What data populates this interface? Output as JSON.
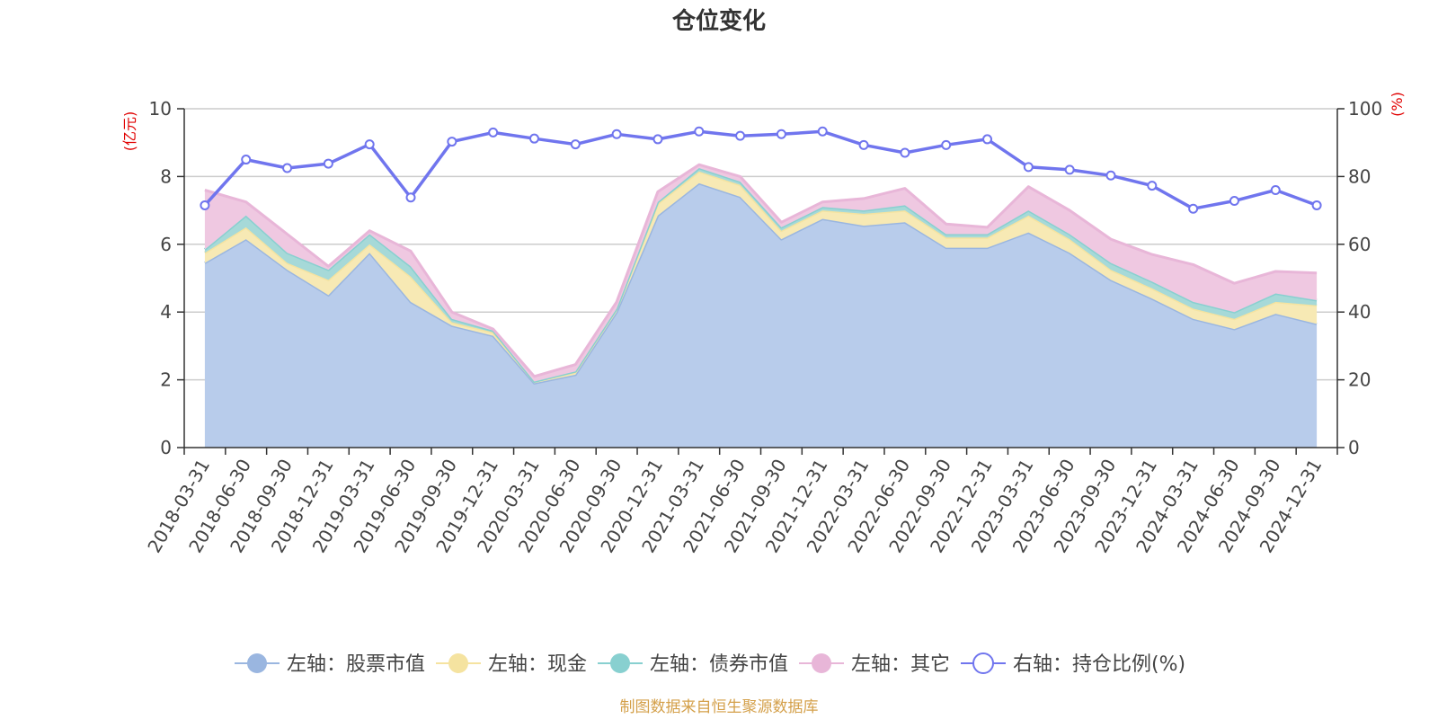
{
  "chart_data": {
    "type": "area",
    "title": "仓位变化",
    "left_unit": "(亿元)",
    "right_unit": "(%)",
    "left_axis": {
      "min": 0,
      "max": 10,
      "ticks": [
        "0",
        "2",
        "4",
        "6",
        "8",
        "10"
      ],
      "tick_values": [
        0,
        2,
        4,
        6,
        8,
        10
      ]
    },
    "right_axis": {
      "min": 0,
      "max": 100,
      "ticks": [
        "0",
        "20",
        "40",
        "60",
        "80",
        "100"
      ],
      "tick_values": [
        0,
        20,
        40,
        60,
        80,
        100
      ]
    },
    "categories": [
      "2018-03-31",
      "2018-06-30",
      "2018-09-30",
      "2018-12-31",
      "2019-03-31",
      "2019-06-30",
      "2019-09-30",
      "2019-12-31",
      "2020-03-31",
      "2020-06-30",
      "2020-09-30",
      "2020-12-31",
      "2021-03-31",
      "2021-06-30",
      "2021-09-30",
      "2021-12-31",
      "2022-03-31",
      "2022-06-30",
      "2022-09-30",
      "2022-12-31",
      "2023-03-31",
      "2023-06-30",
      "2023-09-30",
      "2023-12-31",
      "2024-03-31",
      "2024-06-30",
      "2024-09-30",
      "2024-12-31"
    ],
    "series": [
      {
        "name": "左轴：股票市值",
        "axis": "left",
        "stack": true,
        "color": "#9ab6e0",
        "fill": "#b8cceb",
        "values": [
          5.45,
          6.15,
          5.25,
          4.5,
          5.75,
          4.3,
          3.6,
          3.3,
          1.9,
          2.15,
          4.0,
          6.85,
          7.8,
          7.4,
          6.15,
          6.75,
          6.55,
          6.65,
          5.9,
          5.9,
          6.35,
          5.75,
          4.95,
          4.4,
          3.8,
          3.5,
          3.95,
          3.65
        ]
      },
      {
        "name": "左轴：现金",
        "axis": "left",
        "stack": true,
        "color": "#f5e3a0",
        "fill": "#f7e9b4",
        "values": [
          0.3,
          0.35,
          0.2,
          0.45,
          0.25,
          0.75,
          0.1,
          0.1,
          0.05,
          0.08,
          0.1,
          0.35,
          0.35,
          0.35,
          0.25,
          0.25,
          0.35,
          0.35,
          0.3,
          0.3,
          0.5,
          0.4,
          0.3,
          0.3,
          0.3,
          0.3,
          0.35,
          0.55
        ]
      },
      {
        "name": "左轴：债券市值",
        "axis": "left",
        "stack": true,
        "color": "#88d0d0",
        "fill": "#a6d9d8",
        "values": [
          0.1,
          0.35,
          0.3,
          0.3,
          0.3,
          0.3,
          0.1,
          0.05,
          0.0,
          0.02,
          0.0,
          0.05,
          0.1,
          0.1,
          0.1,
          0.1,
          0.1,
          0.15,
          0.1,
          0.1,
          0.15,
          0.15,
          0.2,
          0.2,
          0.2,
          0.2,
          0.25,
          0.15
        ]
      },
      {
        "name": "左轴：其它",
        "axis": "left",
        "stack": true,
        "color": "#e8b6d8",
        "fill": "#efc8e1",
        "values": [
          1.75,
          0.4,
          0.55,
          0.1,
          0.1,
          0.45,
          0.2,
          0.05,
          0.15,
          0.2,
          0.2,
          0.3,
          0.1,
          0.15,
          0.15,
          0.15,
          0.35,
          0.5,
          0.3,
          0.2,
          0.7,
          0.7,
          0.7,
          0.8,
          1.1,
          0.85,
          0.65,
          0.8
        ]
      },
      {
        "name": "右轴：持仓比例(%)",
        "axis": "right",
        "stack": false,
        "color": "#7075ee",
        "values": [
          71.5,
          85,
          82.5,
          83.8,
          89.5,
          73.8,
          90.3,
          93,
          91.2,
          89.5,
          92.5,
          91,
          93.3,
          92,
          92.5,
          93.3,
          89.3,
          87,
          89.3,
          91,
          82.8,
          82,
          80.3,
          77.3,
          70.5,
          72.8,
          76,
          71.5
        ]
      }
    ],
    "legend": [
      "左轴：股票市值",
      "左轴：现金",
      "左轴：债券市值",
      "左轴：其它",
      "右轴：持仓比例(%)"
    ],
    "source": "制图数据来自恒生聚源数据库"
  }
}
